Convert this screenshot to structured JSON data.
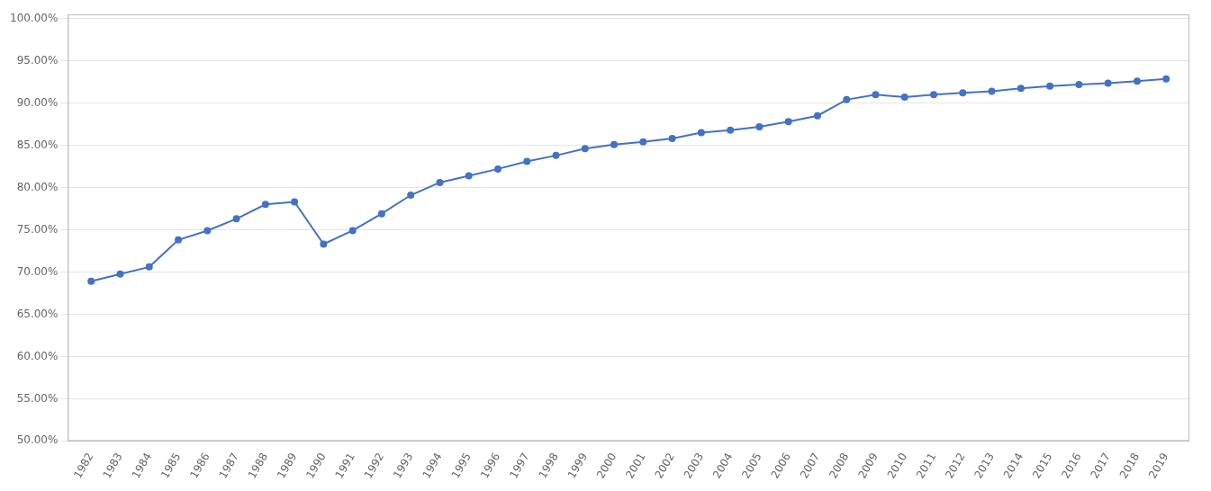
{
  "chart_data": {
    "type": "line",
    "x": [
      1982,
      1983,
      1984,
      1985,
      1986,
      1987,
      1988,
      1989,
      1990,
      1991,
      1992,
      1993,
      1994,
      1995,
      1996,
      1997,
      1998,
      1999,
      2000,
      2001,
      2002,
      2003,
      2004,
      2005,
      2006,
      2007,
      2008,
      2009,
      2010,
      2011,
      2012,
      2013,
      2014,
      2015,
      2016,
      2017,
      2018,
      2019
    ],
    "values": [
      0.689,
      0.6975,
      0.706,
      0.738,
      0.749,
      0.763,
      0.78,
      0.783,
      0.733,
      0.749,
      0.769,
      0.791,
      0.806,
      0.814,
      0.822,
      0.831,
      0.838,
      0.846,
      0.851,
      0.854,
      0.858,
      0.865,
      0.868,
      0.872,
      0.878,
      0.885,
      0.904,
      0.91,
      0.907,
      0.91,
      0.912,
      0.914,
      0.9175,
      0.92,
      0.922,
      0.9235,
      0.926,
      0.9285
    ],
    "color": "#4472C4",
    "marker": "circle",
    "xlim": [
      1981.2,
      2019.8
    ],
    "xticks": [
      1982,
      1983,
      1984,
      1985,
      1986,
      1987,
      1988,
      1989,
      1990,
      1991,
      1992,
      1993,
      1994,
      1995,
      1996,
      1997,
      1998,
      1999,
      2000,
      2001,
      2002,
      2003,
      2004,
      2005,
      2006,
      2007,
      2008,
      2009,
      2010,
      2011,
      2012,
      2013,
      2014,
      2015,
      2016,
      2017,
      2018,
      2019
    ],
    "ylim": [
      0.5,
      1.005
    ],
    "yticks": [
      {
        "value": 0.5,
        "label": "50.00%"
      },
      {
        "value": 0.55,
        "label": "55.00%"
      },
      {
        "value": 0.6,
        "label": "60.00%"
      },
      {
        "value": 0.65,
        "label": "65.00%"
      },
      {
        "value": 0.7,
        "label": "70.00%"
      },
      {
        "value": 0.75,
        "label": "75.00%"
      },
      {
        "value": 0.8,
        "label": "80.00%"
      },
      {
        "value": 0.85,
        "label": "85.00%"
      },
      {
        "value": 0.9,
        "label": "90.00%"
      },
      {
        "value": 0.95,
        "label": "95.00%"
      },
      {
        "value": 1.0,
        "label": "100.00%"
      }
    ],
    "grid": true
  }
}
